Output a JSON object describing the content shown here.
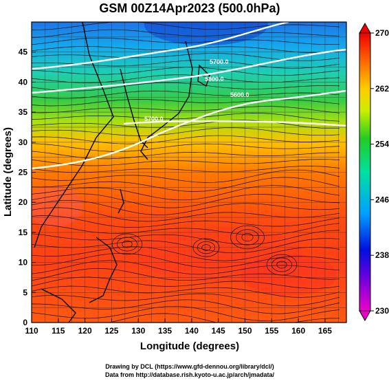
{
  "title": "GSM 00Z14Apr2023 (500.0hPa)",
  "x_axis": {
    "label": "Longitude (degrees)",
    "range": [
      110,
      169
    ],
    "ticks": [
      "110",
      "115",
      "120",
      "125",
      "130",
      "135",
      "140",
      "145",
      "150",
      "155",
      "160",
      "165"
    ]
  },
  "y_axis": {
    "label": "Latitude (degrees)",
    "range": [
      0,
      50
    ],
    "ticks": [
      "0",
      "5",
      "10",
      "15",
      "20",
      "25",
      "30",
      "35",
      "40",
      "45"
    ]
  },
  "colorbar": {
    "range": [
      230,
      270
    ],
    "ticks": [
      "230",
      "238",
      "246",
      "254",
      "262",
      "270"
    ],
    "stops": [
      "#ee00cc",
      "#2200dd",
      "#00a0ff",
      "#00e0a0",
      "#22cc22",
      "#ccee00",
      "#ffcc00",
      "#ff6600",
      "#ee0000"
    ]
  },
  "contour_labels": [
    "5700.0",
    "5800.0",
    "5600.0",
    "5700.0",
    "5800.0"
  ],
  "credits": {
    "line1": "Drawing by DCL (https://www.gfd-dennou.org/library/dcl/)",
    "line2": "Data from http://database.rish.kyoto-u.ac.jp/arch/jmadata/"
  },
  "chart_data": {
    "type": "heatmap",
    "title": "GSM 00Z14Apr2023 (500.0hPa)",
    "xlabel": "Longitude (degrees)",
    "ylabel": "Latitude (degrees)",
    "xlim": [
      110,
      169
    ],
    "ylim": [
      0,
      50
    ],
    "colorbar_range": [
      230,
      270
    ],
    "overlays": [
      "temperature shading",
      "geopotential height contours (white)",
      "wind streamlines"
    ],
    "contour_values": [
      5600,
      5700,
      5800
    ]
  }
}
